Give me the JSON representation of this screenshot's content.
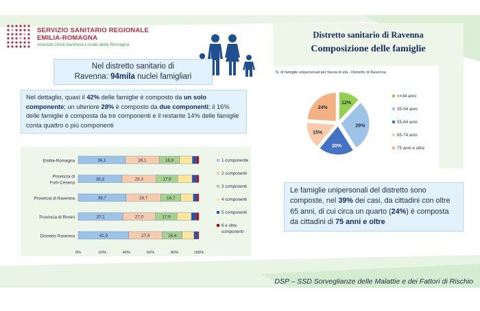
{
  "logo": {
    "line1": "SERVIZIO SANITARIO REGIONALE",
    "line2": "EMILIA-ROMAGNA",
    "line3": "Azienda Unità Sanitaria Locale della Romagna"
  },
  "header": {
    "title1": "Distretto sanitario di Ravenna",
    "title2": "Composizione delle famiglie"
  },
  "intro": {
    "text1": "Nel distretto sanitario di",
    "text2": "Ravenna: ",
    "text_bold": "94mila",
    "text3": " nuclei famigliari"
  },
  "detail": {
    "p1": "Nel dettaglio, quasi il ",
    "b1": "42%",
    "p2": " delle famiglie è composto da ",
    "b2": "un solo componente",
    "p3": "; un ulteriore ",
    "b3": "28%",
    "p4": " è composto da ",
    "b4": "due componenti",
    "p5": "; il 16% delle famiglie è composta da tre componenti e il restante 14% delle famiglie conta quattro o più componenti"
  },
  "unipersonali": {
    "p1": "Le famiglie unipersonali del distretto sono composte, nel ",
    "b1": "39%",
    "p2": " dei casi, da cittadini con oltre 65 anni, di cui circa un quarto (",
    "b2": "24%",
    "p3": ") è composta da cittadini di ",
    "b3": "75 anni e oltre"
  },
  "footer": "DSP – SSD Sorveglianze delle Malattie e dei Fattori di Rischio",
  "colors": {
    "c1": "#9dc3e6",
    "c2": "#f8cbad",
    "c3": "#a9d18e",
    "c4": "#ffe699",
    "c5": "#2e4fa3",
    "c6": "#c00000",
    "pie1": "#92d050",
    "pie2": "#9dc3e6",
    "pie3": "#4472c4",
    "pie4": "#f8cbad",
    "pie5": "#f4b183",
    "bandGreen": "#e8f5e4",
    "accentRed": "#b5283d"
  },
  "chart_data": [
    {
      "type": "bar",
      "orientation": "horizontal",
      "stacked": true,
      "categories": [
        "Emilia-Romagna",
        "Provincia di Forlì-Cesena",
        "Provincia di Ravenna",
        "Provincia di Rimini",
        "Distretto Ravenna"
      ],
      "series": [
        {
          "name": "1 componente",
          "values": [
            39.1,
            36.3,
            39.7,
            37.1,
            41.9
          ]
        },
        {
          "name": "2 componenti",
          "values": [
            28.1,
            28.3,
            28.7,
            27.0,
            27.9
          ]
        },
        {
          "name": "3 componenti",
          "values": [
            16.9,
            17.9,
            16.7,
            17.9,
            16.4
          ]
        },
        {
          "name": "4 componenti",
          "values": [
            10.5,
            11.9,
            10.2,
            11.8,
            9.8
          ]
        },
        {
          "name": "5 componenti",
          "values": [
            3.5,
            3.9,
            3.3,
            4.2,
            2.9
          ]
        },
        {
          "name": "6 e oltre componenti",
          "values": [
            1.9,
            1.7,
            1.4,
            2.0,
            1.1
          ]
        }
      ],
      "data_labels": [
        [
          "39,1",
          "28,1",
          "16,9"
        ],
        [
          "36,3",
          "28,3",
          "17,9"
        ],
        [
          "39,7",
          "28,7",
          "16,7"
        ],
        [
          "37,1",
          "27,0",
          "17,9"
        ],
        [
          "41,9",
          "27,9",
          "16,4"
        ]
      ],
      "x_ticks": [
        "0%",
        "20%",
        "40%",
        "60%",
        "80%",
        "100%"
      ],
      "xlim": [
        0,
        100
      ],
      "legend": "right"
    },
    {
      "type": "pie",
      "title": "N. di famiglie unipersonali per fascia di età - Distretto di Ravenna",
      "categories": [
        "<=34 anni",
        "35-54 anni",
        "55-64 anni",
        "65-74 anni",
        "75 anni e oltre"
      ],
      "values": [
        12,
        29,
        20,
        15,
        24
      ],
      "labels": [
        "12%",
        "29%",
        "20%",
        "15%",
        "24%"
      ],
      "exploded": true,
      "legend": "right"
    }
  ]
}
